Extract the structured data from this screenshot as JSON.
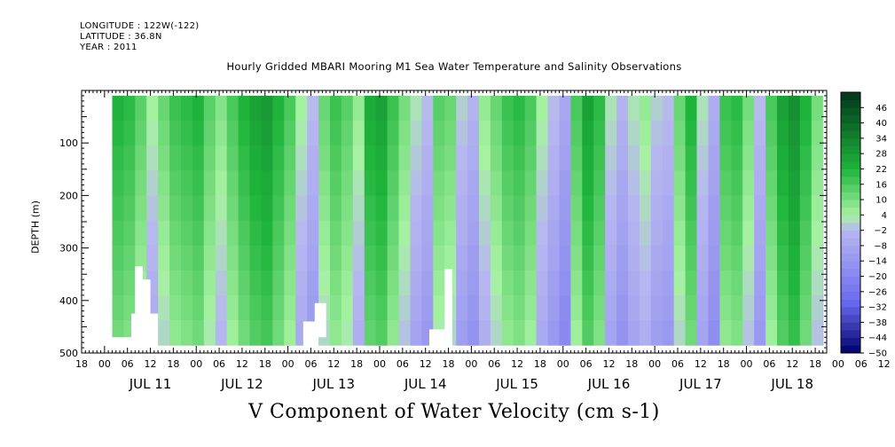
{
  "header": {
    "longitude": "LONGITUDE : 122W(-122)",
    "latitude": "LATITUDE : 36.8N",
    "year": "YEAR : 2011"
  },
  "title": "Hourly Gridded MBARI Mooring M1 Sea Water Temperature and Salinity Observations",
  "bottom_title": "V Component of Water Velocity (cm s-1)",
  "ylabel": "DEPTH (m)",
  "colors": {
    "max_green": "#00361a",
    "mid_green": "#1fb53c",
    "light_green": "#a7f2a2",
    "light_blue": "#b7b7f0",
    "mid_blue": "#6a6af0",
    "max_blue": "#00006a"
  },
  "chart_data": {
    "type": "heatmap",
    "title": "Hourly Gridded MBARI Mooring M1 Sea Water Temperature and Salinity Observations",
    "xlabel": "",
    "ylabel": "DEPTH (m)",
    "value_label": "V Component of Water Velocity (cm s-1)",
    "x_start_hours_after_jul11_00": -6,
    "x_end_hours_after_jul11_00": 189,
    "x_tick_labels": [
      "18",
      "00",
      "06",
      "12",
      "18",
      "00",
      "06",
      "12",
      "18",
      "00",
      "06",
      "12",
      "18",
      "00",
      "06",
      "12",
      "18",
      "00",
      "06",
      "12",
      "18",
      "00",
      "06",
      "12",
      "18",
      "00",
      "06",
      "12",
      "18",
      "00",
      "06",
      "12",
      "18",
      "00",
      "06",
      "12",
      "18"
    ],
    "day_labels": [
      {
        "label": "JUL 11",
        "hour": 0
      },
      {
        "label": "JUL 12",
        "hour": 24
      },
      {
        "label": "JUL 13",
        "hour": 48
      },
      {
        "label": "JUL 14",
        "hour": 72
      },
      {
        "label": "JUL 15",
        "hour": 96
      },
      {
        "label": "JUL 16",
        "hour": 120
      },
      {
        "label": "JUL 17",
        "hour": 144
      },
      {
        "label": "JUL 18",
        "hour": 168
      }
    ],
    "ylim": [
      500,
      0
    ],
    "y_ticks": [
      100,
      200,
      300,
      400,
      500
    ],
    "data_depth_range": [
      10,
      485
    ],
    "data_time_start_hour": 2,
    "colorbar_levels": [
      46,
      40,
      34,
      28,
      22,
      16,
      10,
      4,
      -2,
      -8,
      -14,
      -20,
      -26,
      -32,
      -38,
      -44,
      -50
    ],
    "colorbar_range": [
      -50,
      52
    ],
    "columns": [
      {
        "t": 2,
        "v": 14
      },
      {
        "t": 5,
        "v": 12
      },
      {
        "t": 8,
        "v": 6
      },
      {
        "t": 11,
        "v": -4
      },
      {
        "t": 14,
        "v": 4
      },
      {
        "t": 17,
        "v": 10
      },
      {
        "t": 20,
        "v": 12
      },
      {
        "t": 23,
        "v": 14
      },
      {
        "t": 26,
        "v": 6
      },
      {
        "t": 29,
        "v": 0
      },
      {
        "t": 32,
        "v": 8
      },
      {
        "t": 35,
        "v": 14
      },
      {
        "t": 38,
        "v": 18
      },
      {
        "t": 41,
        "v": 20
      },
      {
        "t": 44,
        "v": 14
      },
      {
        "t": 47,
        "v": 8
      },
      {
        "t": 50,
        "v": -4
      },
      {
        "t": 53,
        "v": -10
      },
      {
        "t": 56,
        "v": 4
      },
      {
        "t": 59,
        "v": 10
      },
      {
        "t": 62,
        "v": 6
      },
      {
        "t": 65,
        "v": -2
      },
      {
        "t": 68,
        "v": 16
      },
      {
        "t": 71,
        "v": 18
      },
      {
        "t": 74,
        "v": 10
      },
      {
        "t": 77,
        "v": 2
      },
      {
        "t": 80,
        "v": -6
      },
      {
        "t": 83,
        "v": -10
      },
      {
        "t": 86,
        "v": 6
      },
      {
        "t": 89,
        "v": 4
      },
      {
        "t": 92,
        "v": -8
      },
      {
        "t": 95,
        "v": -12
      },
      {
        "t": 98,
        "v": -2
      },
      {
        "t": 101,
        "v": 4
      },
      {
        "t": 104,
        "v": 10
      },
      {
        "t": 107,
        "v": 12
      },
      {
        "t": 110,
        "v": 8
      },
      {
        "t": 113,
        "v": -4
      },
      {
        "t": 116,
        "v": -10
      },
      {
        "t": 119,
        "v": -16
      },
      {
        "t": 122,
        "v": 8
      },
      {
        "t": 125,
        "v": 18
      },
      {
        "t": 128,
        "v": 12
      },
      {
        "t": 131,
        "v": -6
      },
      {
        "t": 134,
        "v": -12
      },
      {
        "t": 137,
        "v": -6
      },
      {
        "t": 140,
        "v": -2
      },
      {
        "t": 143,
        "v": -8
      },
      {
        "t": 146,
        "v": -10
      },
      {
        "t": 149,
        "v": 4
      },
      {
        "t": 152,
        "v": 14
      },
      {
        "t": 155,
        "v": -6
      },
      {
        "t": 158,
        "v": -14
      },
      {
        "t": 161,
        "v": 10
      },
      {
        "t": 164,
        "v": 12
      },
      {
        "t": 167,
        "v": 2
      },
      {
        "t": 170,
        "v": -10
      },
      {
        "t": 173,
        "v": 8
      },
      {
        "t": 176,
        "v": 18
      },
      {
        "t": 179,
        "v": 22
      },
      {
        "t": 182,
        "v": 14
      },
      {
        "t": 185,
        "v": 2
      },
      {
        "t": 188,
        "v": -6
      }
    ],
    "surface_bias": 14,
    "missing_blocks": [
      {
        "t0": 2,
        "t1": 7,
        "d0": 470,
        "d1": 490
      },
      {
        "t0": 7,
        "t1": 14,
        "d0": 425,
        "d1": 490
      },
      {
        "t0": 8,
        "t1": 10,
        "d0": 335,
        "d1": 425
      },
      {
        "t0": 10,
        "t1": 12,
        "d0": 360,
        "d1": 425
      },
      {
        "t0": 52,
        "t1": 56,
        "d0": 440,
        "d1": 490
      },
      {
        "t0": 55,
        "t1": 58,
        "d0": 405,
        "d1": 470
      },
      {
        "t0": 85,
        "t1": 89,
        "d0": 455,
        "d1": 490
      },
      {
        "t0": 89,
        "t1": 91,
        "d0": 340,
        "d1": 490
      }
    ]
  }
}
